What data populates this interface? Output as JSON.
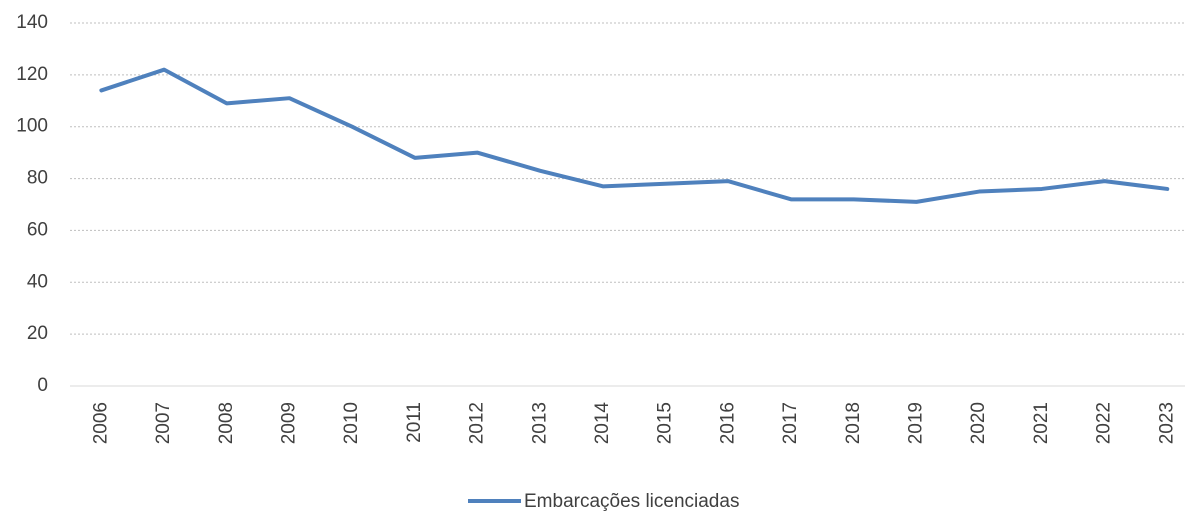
{
  "chart_data": {
    "type": "line",
    "categories": [
      "2006",
      "2007",
      "2008",
      "2009",
      "2010",
      "2011",
      "2012",
      "2013",
      "2014",
      "2015",
      "2016",
      "2017",
      "2018",
      "2019",
      "2020",
      "2021",
      "2022",
      "2023"
    ],
    "series": [
      {
        "name": "Embarcações licenciadas",
        "color": "#4f81bd",
        "values": [
          114,
          122,
          109,
          111,
          100,
          88,
          90,
          83,
          77,
          78,
          79,
          72,
          72,
          71,
          75,
          76,
          79,
          76
        ]
      }
    ],
    "ylim": [
      0,
      140
    ],
    "yticks": [
      0,
      20,
      40,
      60,
      80,
      100,
      120,
      140
    ],
    "grid": true,
    "legend": "bottom"
  }
}
